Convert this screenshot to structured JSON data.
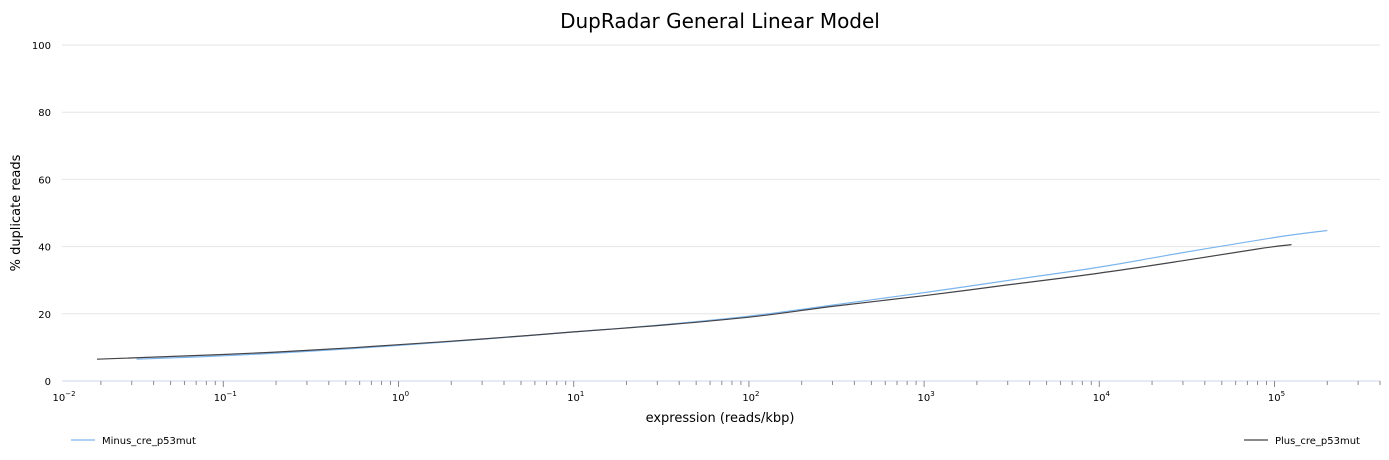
{
  "chart_data": {
    "type": "line",
    "title": "DupRadar General Linear Model",
    "xlabel": "expression (reads/kbp)",
    "ylabel": "% duplicate reads",
    "x_scale": "log",
    "xlim": [
      0.012,
      400000
    ],
    "ylim": [
      0,
      100
    ],
    "y_ticks": [
      0,
      20,
      40,
      60,
      80,
      100
    ],
    "x_ticks": [
      {
        "value": 0.01,
        "base": "10",
        "exp": "−2"
      },
      {
        "value": 0.1,
        "base": "10",
        "exp": "−1"
      },
      {
        "value": 1,
        "base": "10",
        "exp": "0"
      },
      {
        "value": 10,
        "base": "10",
        "exp": "1"
      },
      {
        "value": 100,
        "base": "10",
        "exp": "2"
      },
      {
        "value": 1000,
        "base": "10",
        "exp": "3"
      },
      {
        "value": 10000,
        "base": "10",
        "exp": "4"
      },
      {
        "value": 100000,
        "base": "10",
        "exp": "5"
      }
    ],
    "grid": "horizontal",
    "legend_placement": "bottom",
    "series": [
      {
        "name": "Minus_cre_p53mut",
        "color": "#7cb5ec",
        "legend_position": "bottom-left",
        "points": [
          [
            0.032,
            6.5
          ],
          [
            0.1,
            7.5
          ],
          [
            0.3,
            8.8
          ],
          [
            1,
            10.6
          ],
          [
            3,
            12.4
          ],
          [
            10,
            14.6
          ],
          [
            30,
            16.6
          ],
          [
            100,
            19.3
          ],
          [
            300,
            22.6
          ],
          [
            1000,
            26.3
          ],
          [
            3000,
            29.9
          ],
          [
            10000,
            33.9
          ],
          [
            30000,
            38.2
          ],
          [
            100000,
            42.7
          ],
          [
            200000,
            44.8
          ]
        ]
      },
      {
        "name": "Plus_cre_p53mut",
        "color": "#434348",
        "legend_position": "bottom-right",
        "points": [
          [
            0.019,
            6.5
          ],
          [
            0.1,
            7.9
          ],
          [
            0.3,
            9.1
          ],
          [
            1,
            10.8
          ],
          [
            3,
            12.5
          ],
          [
            10,
            14.6
          ],
          [
            30,
            16.5
          ],
          [
            100,
            19.0
          ],
          [
            300,
            22.2
          ],
          [
            1000,
            25.4
          ],
          [
            3000,
            28.6
          ],
          [
            10000,
            32.1
          ],
          [
            30000,
            35.8
          ],
          [
            80000,
            39.3
          ],
          [
            125000,
            40.6
          ]
        ]
      }
    ]
  }
}
